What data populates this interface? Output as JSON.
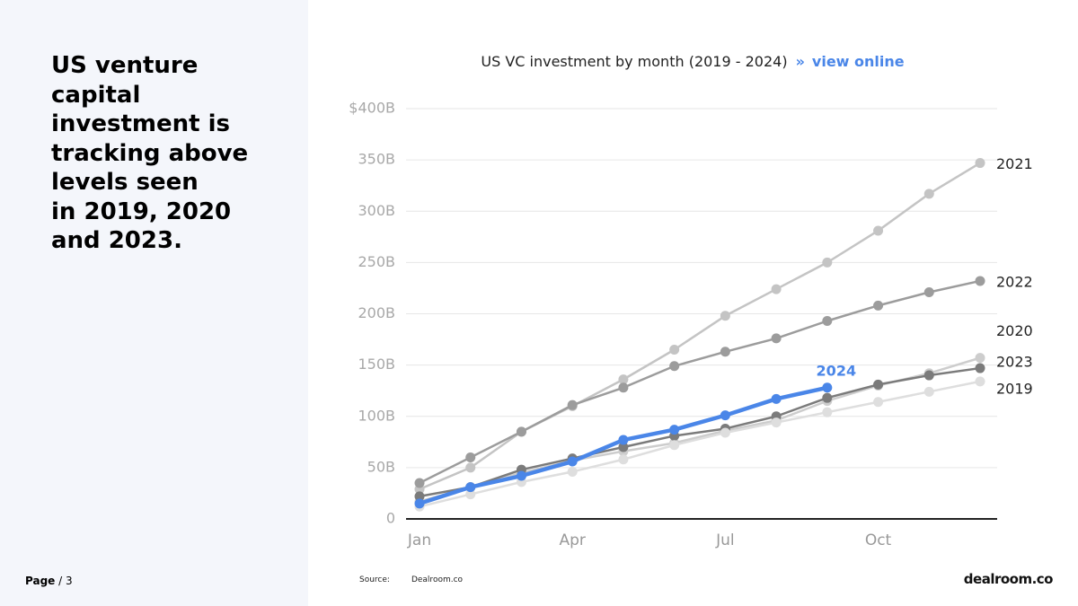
{
  "headline": [
    "US venture",
    "capital",
    "investment is",
    "tracking above",
    "levels seen",
    "in 2019, 2020",
    "and 2023."
  ],
  "page": {
    "label": "Page",
    "number": "/ 3"
  },
  "source": {
    "label": "Source:",
    "value": "Dealroom.co"
  },
  "logo": "dealroom.co",
  "chart_data": {
    "type": "line",
    "title": "US VC investment by month (2019 - 2024)",
    "link_marker": "»",
    "link": "view online",
    "categories": [
      "Jan",
      null,
      null,
      "Apr",
      null,
      null,
      "Jul",
      null,
      null,
      "Oct",
      null,
      null
    ],
    "ylim": [
      0,
      400
    ],
    "yticks": [
      0,
      {
        "value": 50,
        "label": "50B"
      },
      {
        "value": 100,
        "label": "100B"
      },
      {
        "value": 150,
        "label": "150B"
      },
      {
        "value": 200,
        "label": "200B"
      },
      {
        "value": 250,
        "label": "250B"
      },
      {
        "value": 300,
        "label": "300B"
      },
      {
        "value": 350,
        "label": "350B"
      },
      {
        "value": 400,
        "label": "$400B"
      }
    ],
    "grid": true,
    "series": [
      {
        "name": "2021",
        "color": "#c4c4c4",
        "values": [
          29,
          50,
          85,
          110,
          136,
          165,
          198,
          224,
          250,
          281,
          317,
          347
        ]
      },
      {
        "name": "2022",
        "color": "#9c9c9c",
        "values": [
          35,
          60,
          85,
          111,
          128,
          149,
          163,
          176,
          193,
          208,
          221,
          232
        ]
      },
      {
        "name": "2020",
        "color": "#cdcdcd",
        "values": [
          17,
          31,
          45,
          57,
          66,
          74,
          86,
          96,
          115,
          130,
          142,
          157
        ]
      },
      {
        "name": "2023",
        "color": "#7b7b7b",
        "values": [
          22,
          31,
          48,
          59,
          70,
          81,
          88,
          100,
          118,
          131,
          140,
          147
        ]
      },
      {
        "name": "2019",
        "color": "#dedede",
        "values": [
          12,
          24,
          36,
          46,
          58,
          72,
          84,
          94,
          104,
          114,
          124,
          134
        ]
      },
      {
        "name": "2024",
        "color": "#4a86e8",
        "values": [
          15,
          31,
          42,
          56,
          77,
          87,
          101,
          117,
          128,
          null,
          null,
          null
        ]
      }
    ]
  }
}
